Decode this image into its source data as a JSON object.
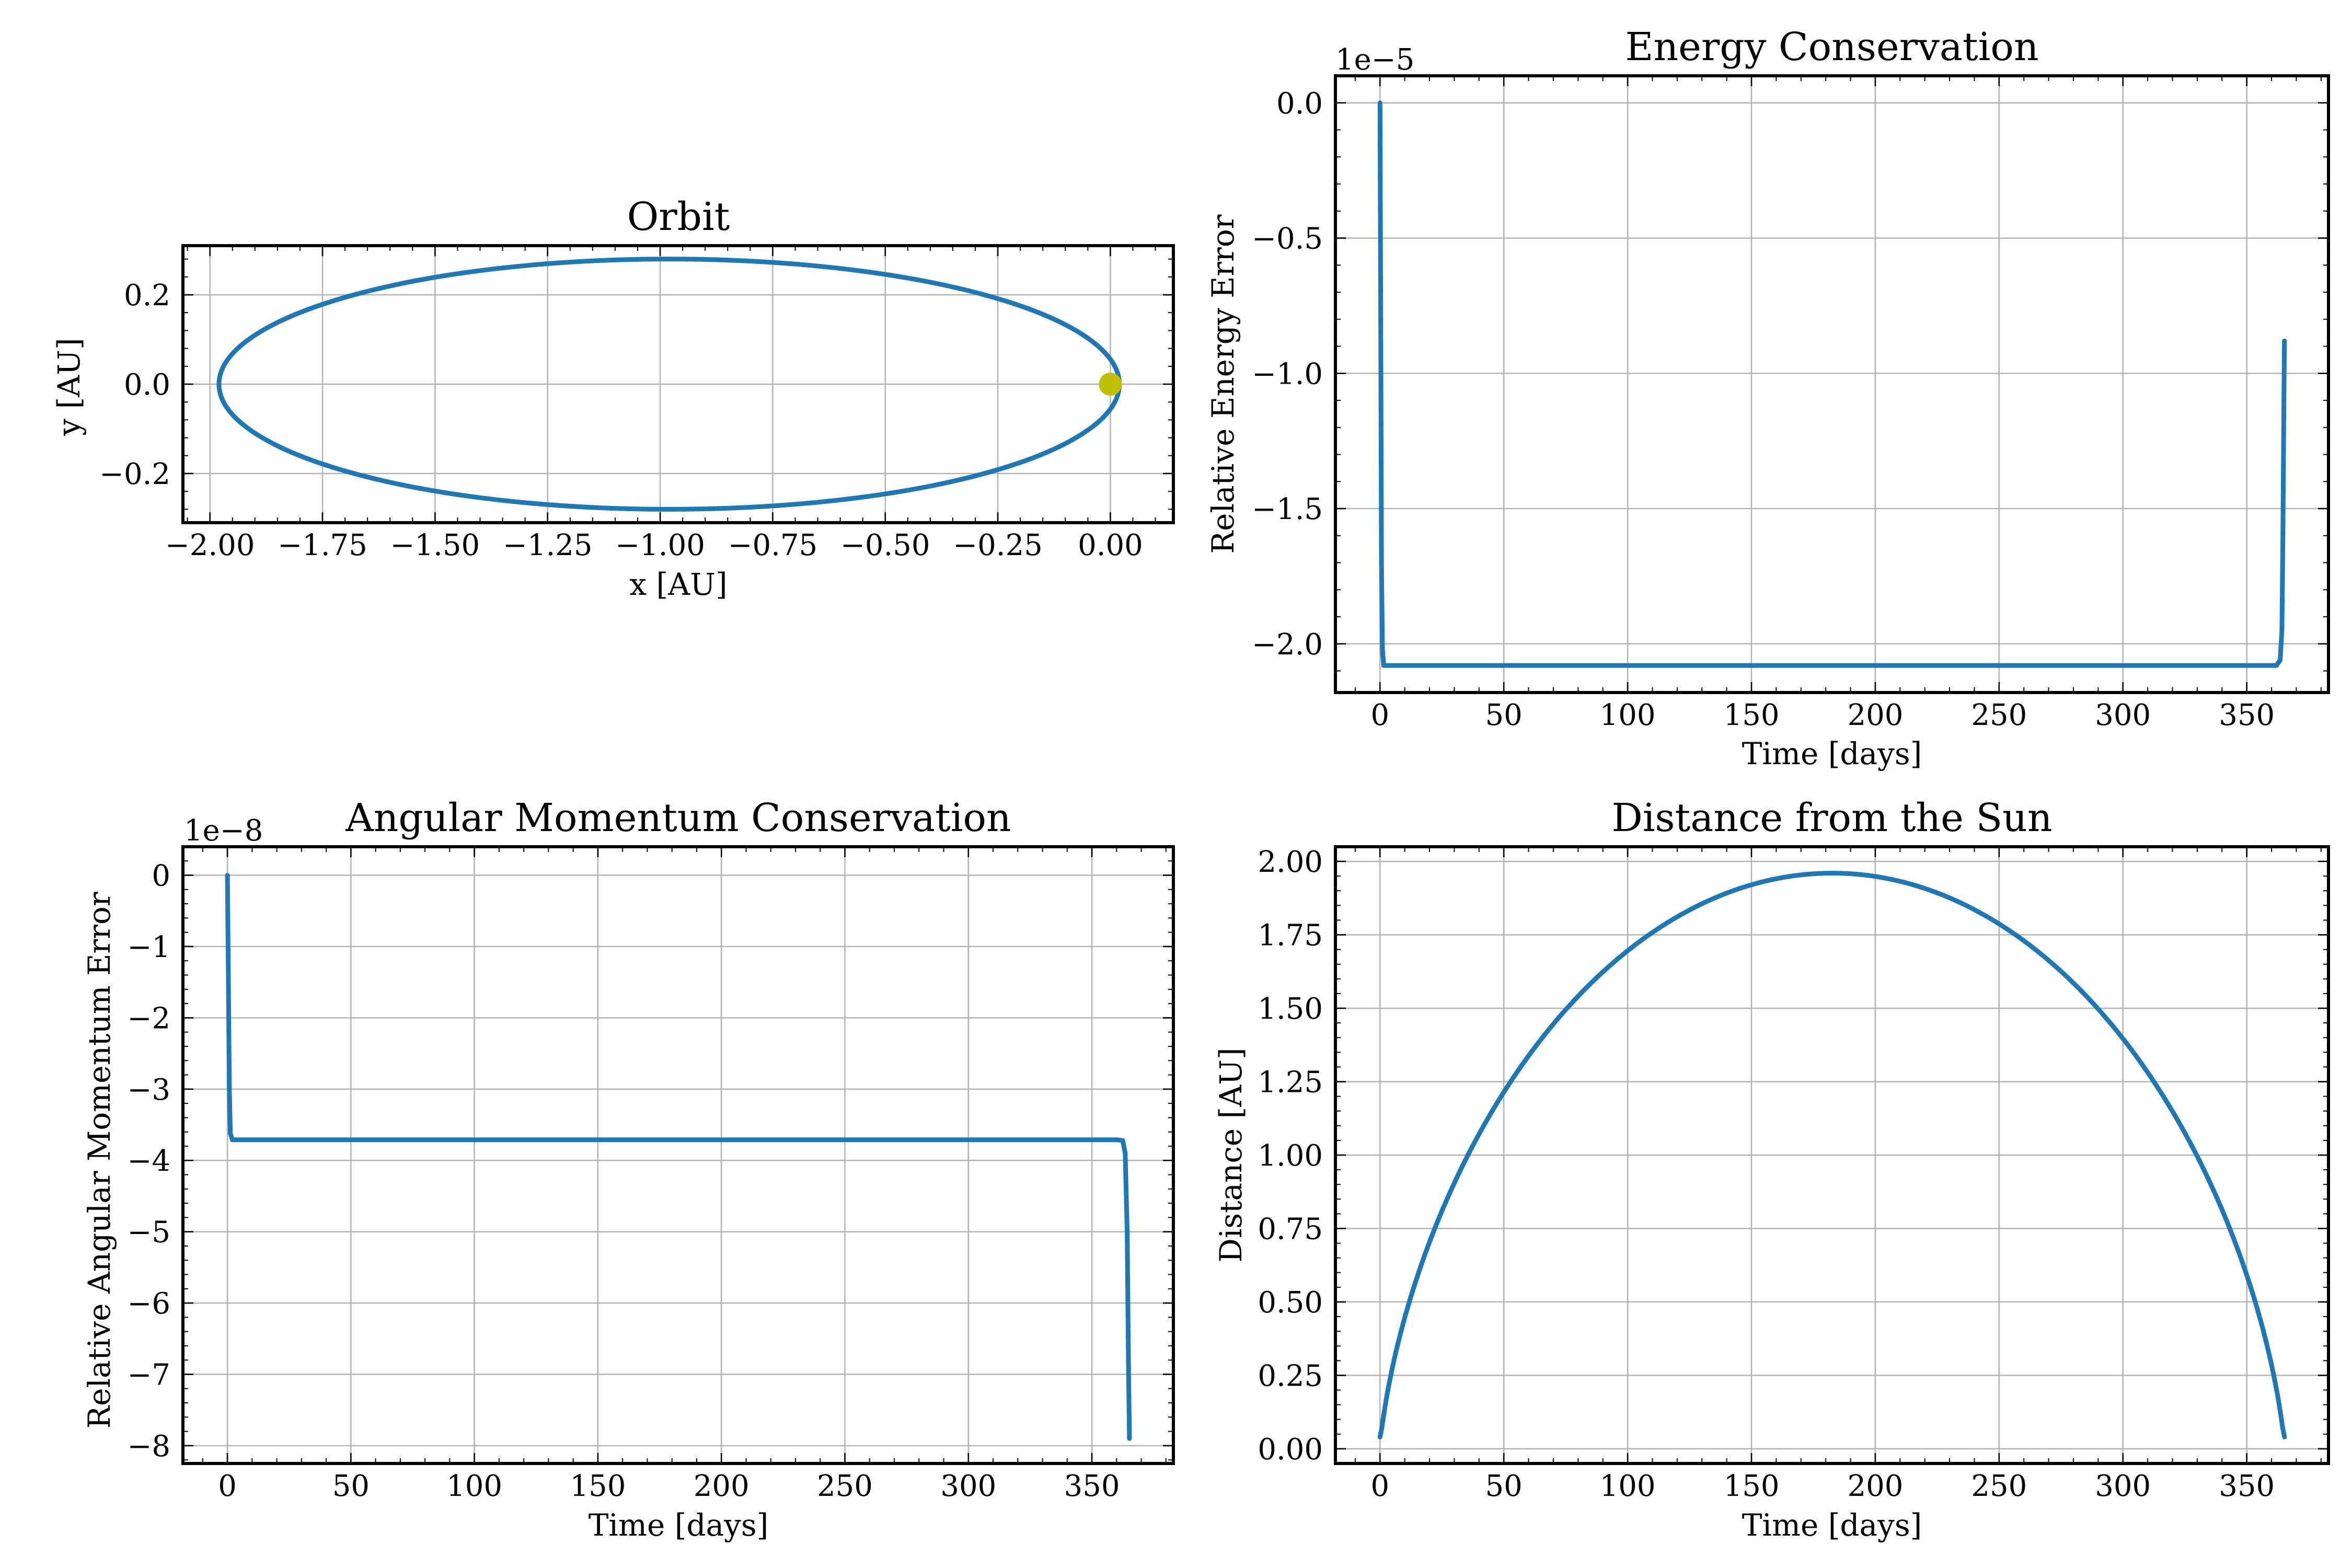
{
  "chart_data": [
    {
      "id": "orbit",
      "type": "line",
      "title": "Orbit",
      "xlabel": "x [AU]",
      "ylabel": "y [AU]",
      "xlim": [
        -2.06,
        0.14
      ],
      "ylim": [
        -0.31,
        0.31
      ],
      "equal_aspect": true,
      "grid": true,
      "xticks": [
        -2.0,
        -1.75,
        -1.5,
        -1.25,
        -1.0,
        -0.75,
        -0.5,
        -0.25,
        0.0
      ],
      "xtick_labels": [
        "−2.00",
        "−1.75",
        "−1.50",
        "−1.25",
        "−1.00",
        "−0.75",
        "−0.50",
        "−0.25",
        "0.00"
      ],
      "yticks": [
        -0.2,
        0.0,
        0.2
      ],
      "ytick_labels": [
        "−0.2",
        "0.0",
        "0.2"
      ],
      "series": [
        {
          "kind": "ellipse",
          "center_x": -0.98,
          "center_y": 0.0,
          "semi_major": 1.0,
          "semi_minor": 0.28,
          "color": "#1f77b4"
        },
        {
          "kind": "point",
          "x": 0.0,
          "y": 0.0,
          "color": "#bfbf00"
        }
      ]
    },
    {
      "id": "energy",
      "type": "line",
      "title": "Energy Conservation",
      "xlabel": "Time [days]",
      "ylabel": "Relative Energy Error",
      "offset_text": "1e−5",
      "xlim": [
        -18,
        383
      ],
      "ylim": [
        -2.18,
        0.1
      ],
      "grid": true,
      "xticks": [
        0,
        50,
        100,
        150,
        200,
        250,
        300,
        350
      ],
      "xtick_labels": [
        "0",
        "50",
        "100",
        "150",
        "200",
        "250",
        "300",
        "350"
      ],
      "yticks": [
        0.0,
        -0.5,
        -1.0,
        -1.5,
        -2.0
      ],
      "ytick_labels": [
        "0.0",
        "−0.5",
        "−1.0",
        "−1.5",
        "−2.0"
      ],
      "series": [
        {
          "color": "#1f77b4",
          "x": [
            0,
            0.3,
            0.6,
            1.0,
            1.5,
            3,
            50,
            100,
            200,
            300,
            362,
            363.5,
            364.2,
            364.6,
            365,
            365.2
          ],
          "y": [
            0.0,
            -0.8,
            -1.7,
            -2.02,
            -2.08,
            -2.08,
            -2.08,
            -2.08,
            -2.08,
            -2.08,
            -2.08,
            -2.06,
            -1.95,
            -1.6,
            -1.1,
            -0.88
          ]
        }
      ]
    },
    {
      "id": "angular",
      "type": "line",
      "title": "Angular Momentum Conservation",
      "xlabel": "Time [days]",
      "ylabel": "Relative Angular Momentum Error",
      "offset_text": "1e−8",
      "xlim": [
        -18,
        383
      ],
      "ylim": [
        -8.25,
        0.4
      ],
      "grid": true,
      "xticks": [
        0,
        50,
        100,
        150,
        200,
        250,
        300,
        350
      ],
      "xtick_labels": [
        "0",
        "50",
        "100",
        "150",
        "200",
        "250",
        "300",
        "350"
      ],
      "yticks": [
        0,
        -1,
        -2,
        -3,
        -4,
        -5,
        -6,
        -7,
        -8
      ],
      "ytick_labels": [
        "0",
        "−1",
        "−2",
        "−3",
        "−4",
        "−5",
        "−6",
        "−7",
        "−8"
      ],
      "series": [
        {
          "color": "#1f77b4",
          "x": [
            0,
            0.4,
            0.8,
            1.2,
            2,
            50,
            100,
            200,
            300,
            360,
            362.5,
            363.5,
            364.3,
            364.8,
            365.2
          ],
          "y": [
            0.0,
            -1.5,
            -3.0,
            -3.62,
            -3.71,
            -3.71,
            -3.71,
            -3.71,
            -3.71,
            -3.71,
            -3.72,
            -3.9,
            -5.0,
            -6.8,
            -7.9
          ]
        }
      ]
    },
    {
      "id": "distance",
      "type": "line",
      "title": "Distance from the Sun",
      "xlabel": "Time [days]",
      "ylabel": "Distance [AU]",
      "xlim": [
        -18,
        383
      ],
      "ylim": [
        -0.05,
        2.05
      ],
      "grid": true,
      "xticks": [
        0,
        50,
        100,
        150,
        200,
        250,
        300,
        350
      ],
      "xtick_labels": [
        "0",
        "50",
        "100",
        "150",
        "200",
        "250",
        "300",
        "350"
      ],
      "yticks": [
        0.0,
        0.25,
        0.5,
        0.75,
        1.0,
        1.25,
        1.5,
        1.75,
        2.0
      ],
      "ytick_labels": [
        "0.00",
        "0.25",
        "0.50",
        "0.75",
        "1.00",
        "1.25",
        "1.50",
        "1.75",
        "2.00"
      ],
      "series": [
        {
          "color": "#1f77b4",
          "kind": "kepler-distance",
          "period_days": 365.25,
          "semi_major": 1.0,
          "eccentricity": 0.96,
          "start_at": "periapsis"
        }
      ]
    }
  ]
}
